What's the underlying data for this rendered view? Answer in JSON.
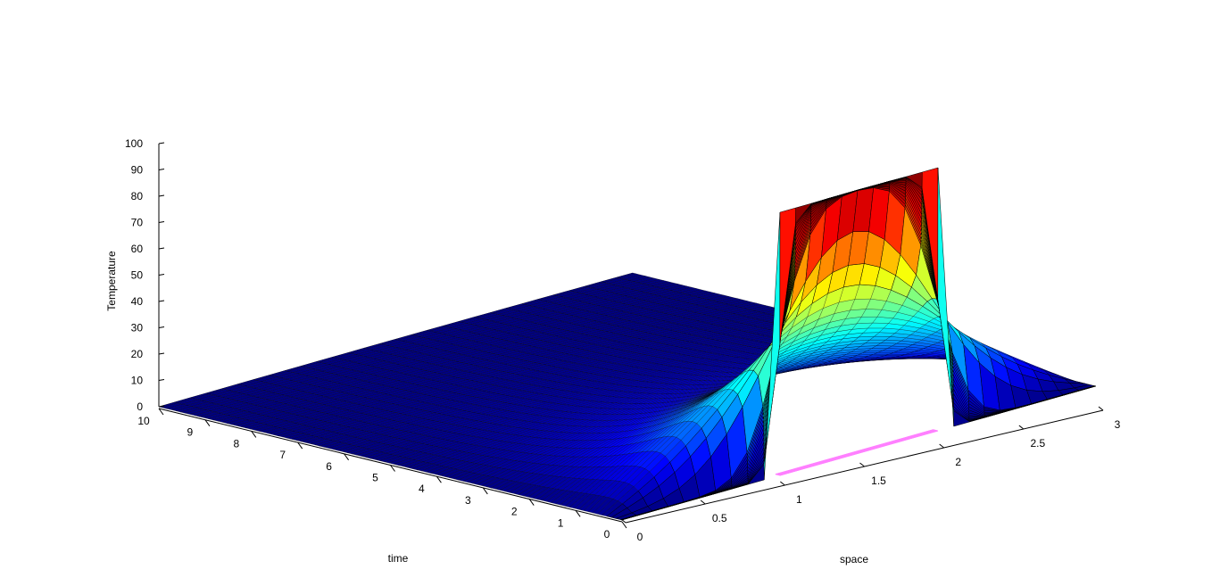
{
  "chart_data": {
    "type": "surface3d",
    "title": "",
    "xlabel": "space",
    "ylabel": "time",
    "zlabel": "Temperature",
    "xlim": [
      0,
      3
    ],
    "ylim": [
      0,
      10
    ],
    "zlim": [
      0,
      100
    ],
    "x_ticks": [
      "0",
      "0.5",
      "1",
      "1.5",
      "2",
      "2.5",
      "3"
    ],
    "y_ticks": [
      "0",
      "1",
      "2",
      "3",
      "4",
      "5",
      "6",
      "7",
      "8",
      "9",
      "10"
    ],
    "z_ticks": [
      "0",
      "10",
      "20",
      "30",
      "40",
      "50",
      "60",
      "70",
      "80",
      "90",
      "100"
    ],
    "colormap": "jet",
    "initial_condition": {
      "x_range": [
        1,
        2
      ],
      "value": 100
    },
    "boundary_value": 0,
    "grid": false,
    "colors": {
      "background": "#ffffff",
      "hot": "#800000",
      "cold": "#00008f",
      "contour": "#ff80ff"
    }
  }
}
